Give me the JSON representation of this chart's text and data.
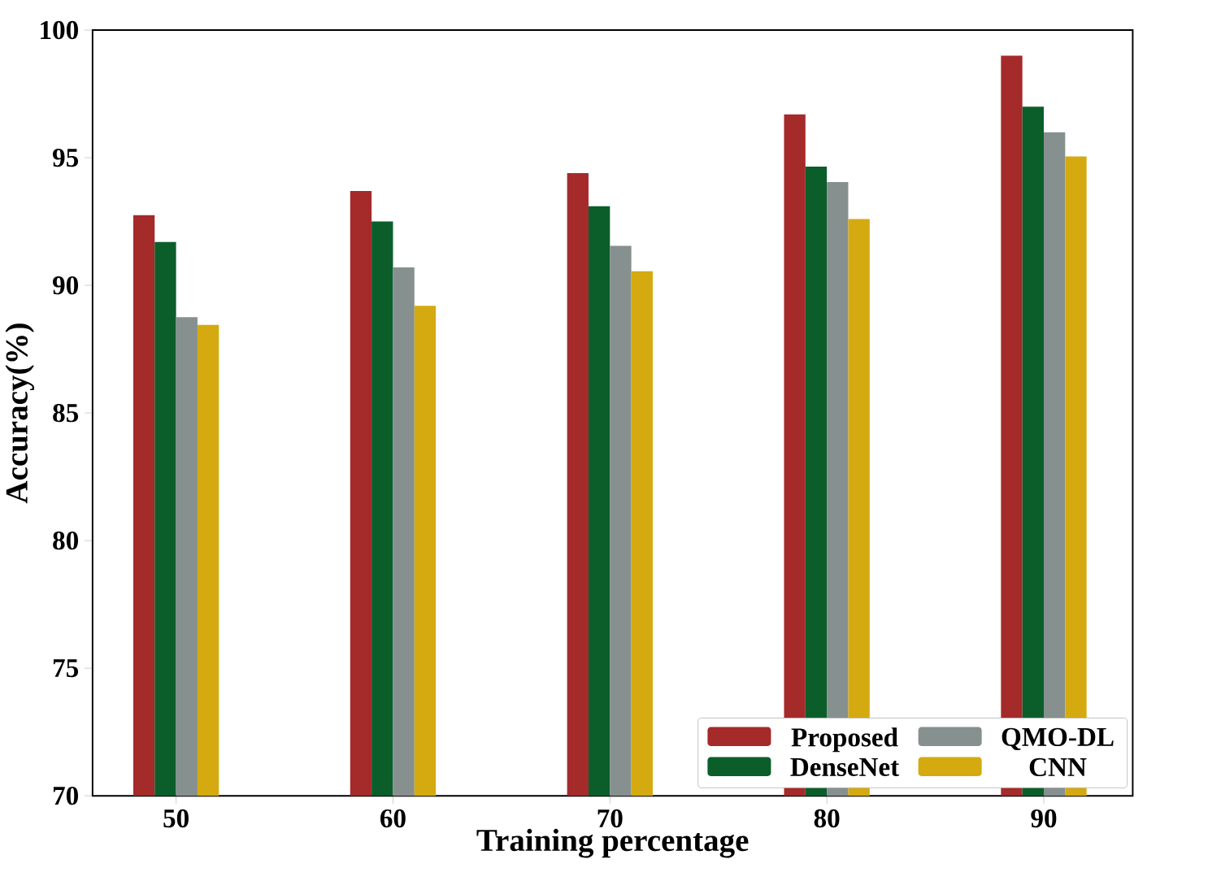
{
  "chart_data": {
    "type": "bar",
    "xlabel": "Training percentage",
    "ylabel": "Accuracy(%)",
    "categories": [
      "50",
      "60",
      "70",
      "80",
      "90"
    ],
    "series": [
      {
        "name": "Proposed",
        "color": "#a52a2a",
        "values": [
          92.75,
          93.7,
          94.4,
          96.7,
          99.0
        ]
      },
      {
        "name": "DenseNet",
        "color": "#0b5e2a",
        "values": [
          91.7,
          92.5,
          93.1,
          94.65,
          97.0
        ]
      },
      {
        "name": "QMO-DL",
        "color": "#86908f",
        "values": [
          88.75,
          90.7,
          91.55,
          94.05,
          96.0
        ]
      },
      {
        "name": "CNN",
        "color": "#d4aa10",
        "values": [
          88.45,
          89.2,
          90.55,
          92.6,
          95.05
        ]
      }
    ],
    "ylim": [
      70,
      100
    ],
    "yticks": [
      70,
      75,
      80,
      85,
      90,
      95,
      100
    ],
    "grid": false,
    "legend": "bottom right"
  }
}
